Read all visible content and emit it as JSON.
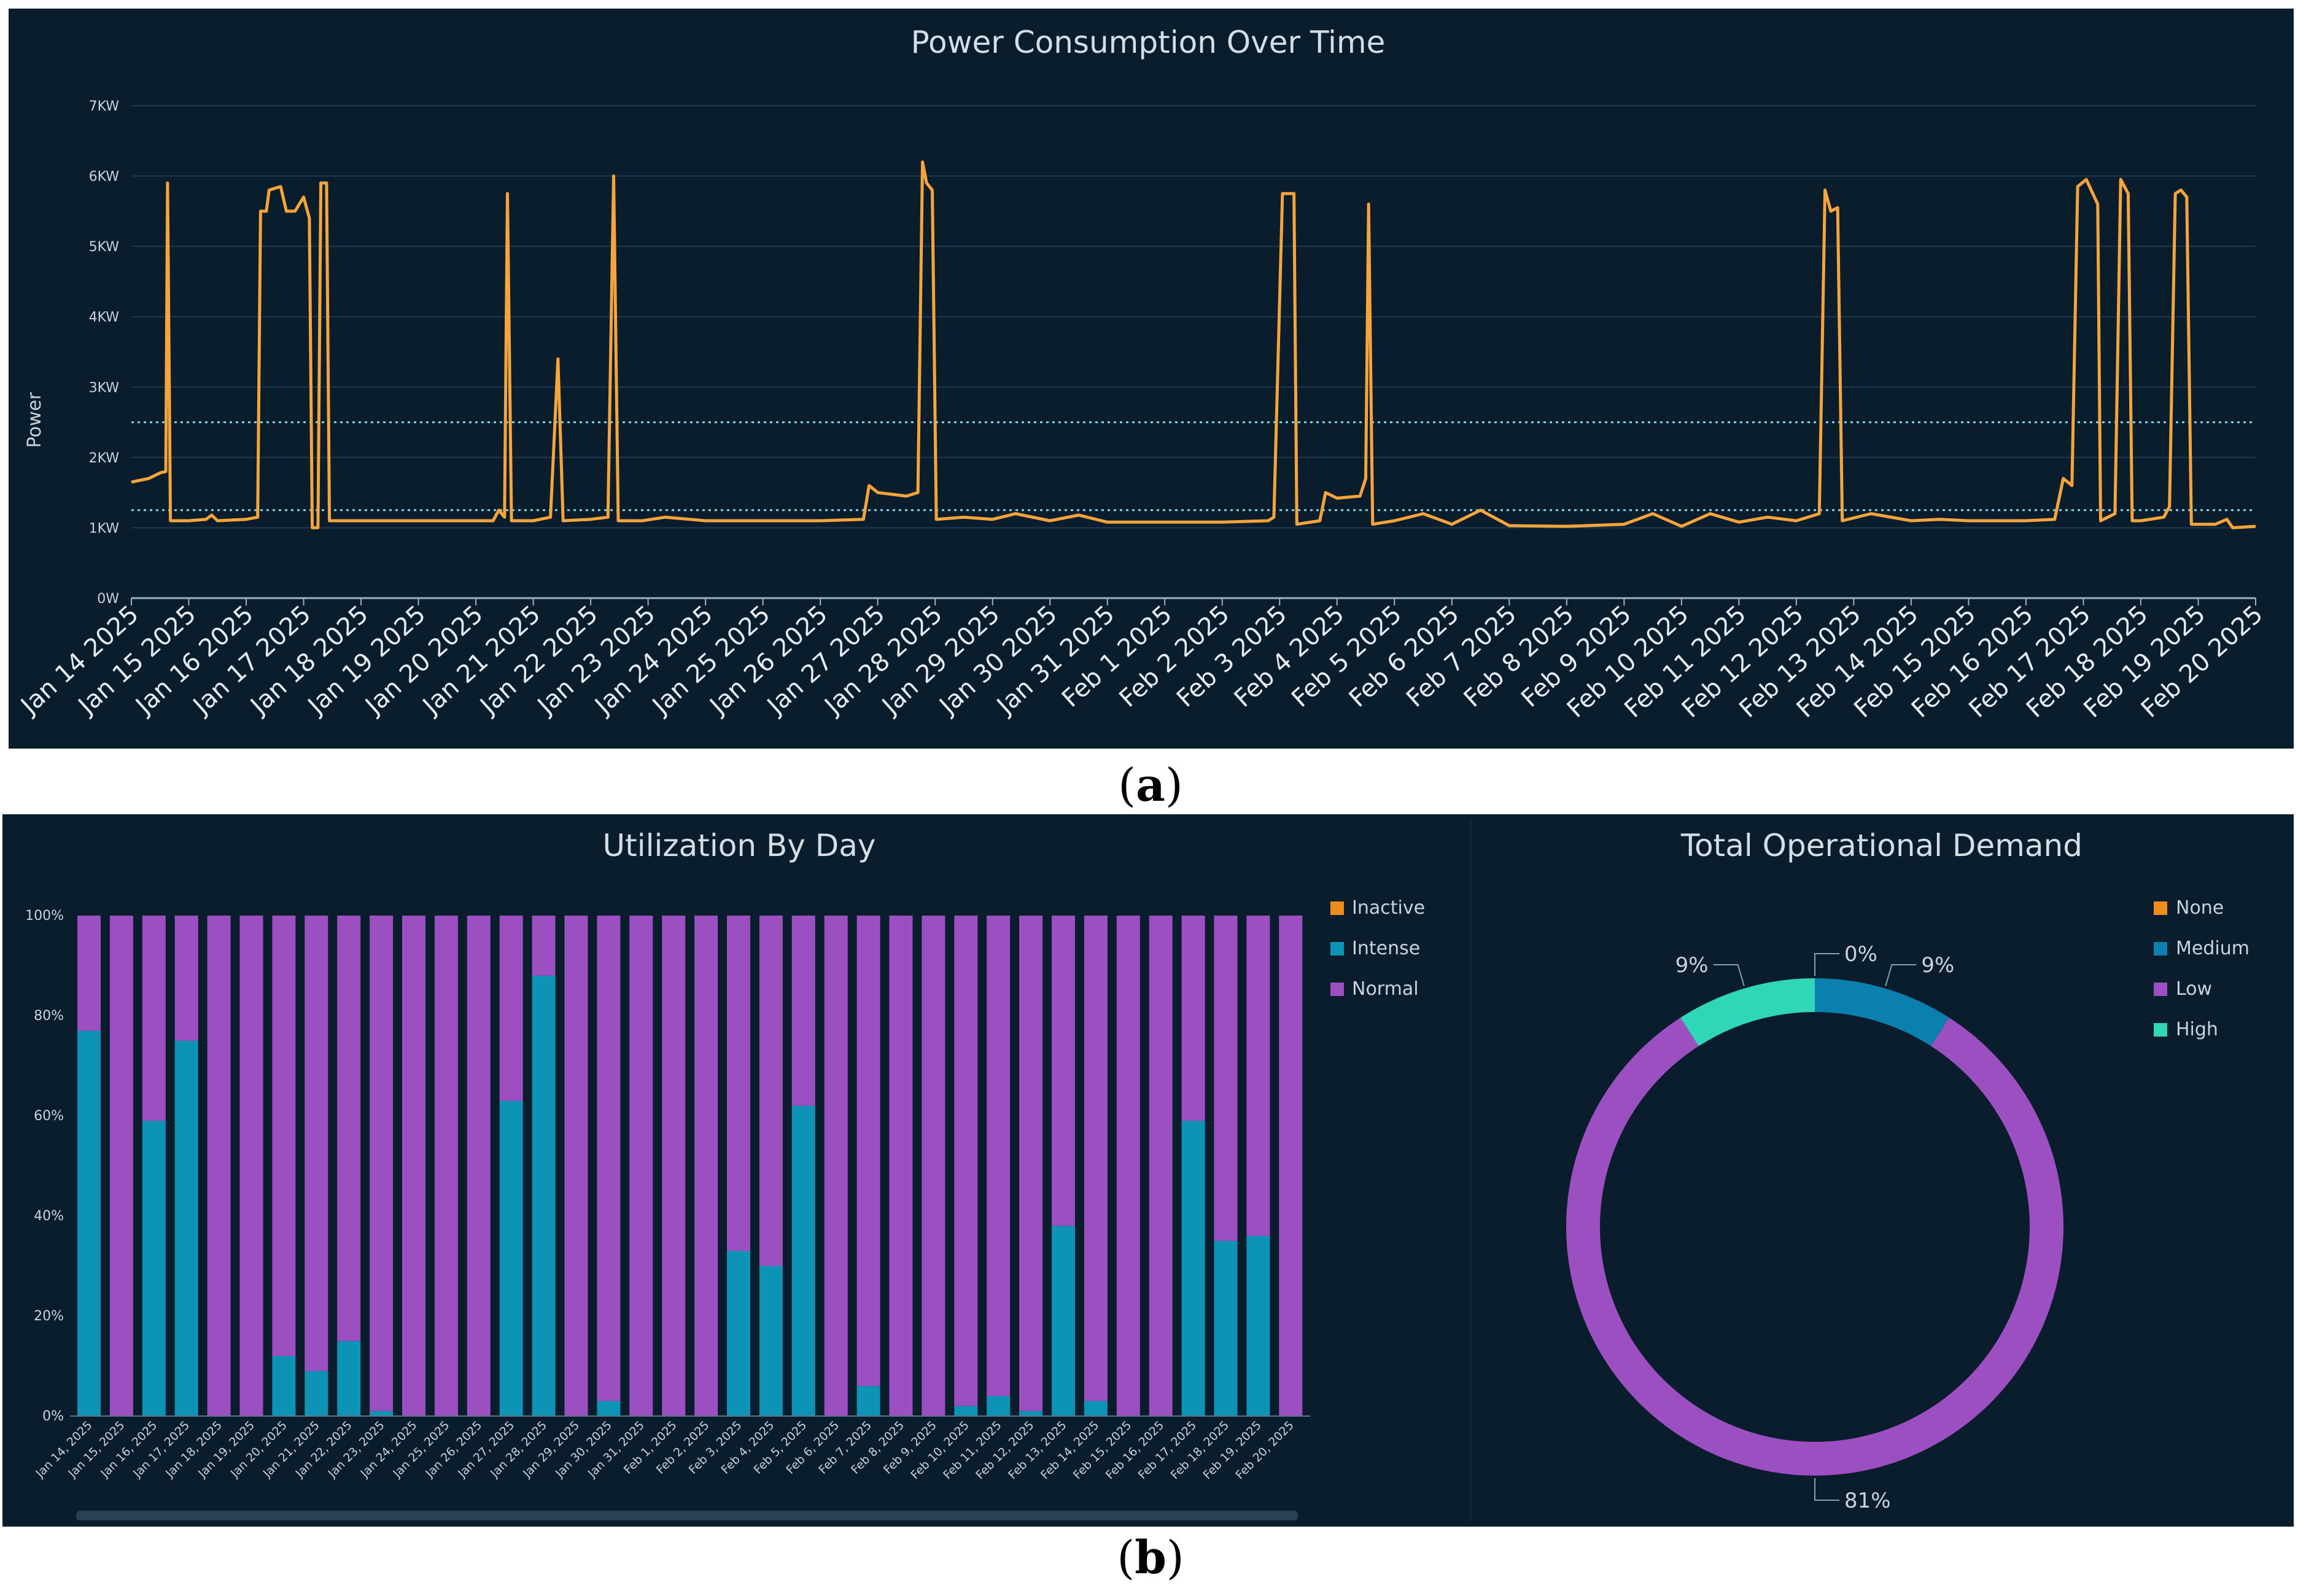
{
  "figure_labels": {
    "a": "a",
    "b": "b"
  },
  "colors": {
    "panel_bg": "#0a1d2d",
    "line": "#f7a43a",
    "intense": "#0d93b6",
    "normal": "#9b4fc0",
    "inactive": "#f08c1e",
    "none": "#f08c1e",
    "medium": "#0b7fae",
    "low": "#9b4fc0",
    "high": "#2fd6b7",
    "grid": "#1d3a52",
    "threshold": "#7ed9ee",
    "text": "#c9d3dc"
  },
  "chart_data": [
    {
      "type": "line",
      "title": "Power Consumption Over Time",
      "ylabel": "Power",
      "xlabel": "",
      "ylim": [
        0,
        7
      ],
      "y_ticks": [
        0,
        1,
        2,
        3,
        4,
        5,
        6,
        7
      ],
      "y_tick_labels": [
        "0W",
        "1KW",
        "2KW",
        "3KW",
        "4KW",
        "5KW",
        "6KW",
        "7KW"
      ],
      "x_tick_labels": [
        "Jan 14 2025",
        "Jan 15 2025",
        "Jan 16 2025",
        "Jan 17 2025",
        "Jan 18 2025",
        "Jan 19 2025",
        "Jan 20 2025",
        "Jan 21 2025",
        "Jan 22 2025",
        "Jan 23 2025",
        "Jan 24 2025",
        "Jan 25 2025",
        "Jan 26 2025",
        "Jan 27 2025",
        "Jan 28 2025",
        "Jan 29 2025",
        "Jan 30 2025",
        "Jan 31 2025",
        "Feb 1 2025",
        "Feb 2 2025",
        "Feb 3 2025",
        "Feb 4 2025",
        "Feb 5 2025",
        "Feb 6 2025",
        "Feb 7 2025",
        "Feb 8 2025",
        "Feb 9 2025",
        "Feb 10 2025",
        "Feb 11 2025",
        "Feb 12 2025",
        "Feb 13 2025",
        "Feb 14 2025",
        "Feb 15 2025",
        "Feb 16 2025",
        "Feb 17 2025",
        "Feb 18 2025",
        "Feb 19 2025",
        "Feb 20 2025"
      ],
      "grid": true,
      "thresholds": [
        2.5,
        1.25
      ],
      "series": [
        {
          "name": "",
          "points": [
            [
              0,
              1.65
            ],
            [
              0.3,
              1.7
            ],
            [
              0.5,
              1.78
            ],
            [
              0.6,
              1.8
            ],
            [
              0.63,
              5.9
            ],
            [
              0.68,
              1.1
            ],
            [
              1.0,
              1.1
            ],
            [
              1.3,
              1.12
            ],
            [
              1.4,
              1.18
            ],
            [
              1.5,
              1.1
            ],
            [
              2.0,
              1.12
            ],
            [
              2.2,
              1.15
            ],
            [
              2.25,
              5.5
            ],
            [
              2.35,
              5.5
            ],
            [
              2.4,
              5.8
            ],
            [
              2.6,
              5.85
            ],
            [
              2.7,
              5.5
            ],
            [
              2.85,
              5.5
            ],
            [
              3.0,
              5.7
            ],
            [
              3.1,
              5.4
            ],
            [
              3.15,
              1.0
            ],
            [
              3.25,
              1.0
            ],
            [
              3.3,
              5.9
            ],
            [
              3.4,
              5.9
            ],
            [
              3.45,
              1.1
            ],
            [
              4.0,
              1.1
            ],
            [
              5.0,
              1.1
            ],
            [
              6.0,
              1.1
            ],
            [
              6.3,
              1.1
            ],
            [
              6.4,
              1.25
            ],
            [
              6.5,
              1.15
            ],
            [
              6.55,
              5.75
            ],
            [
              6.62,
              1.1
            ],
            [
              7.0,
              1.1
            ],
            [
              7.3,
              1.15
            ],
            [
              7.43,
              3.4
            ],
            [
              7.52,
              1.1
            ],
            [
              8.0,
              1.12
            ],
            [
              8.3,
              1.15
            ],
            [
              8.4,
              6.0
            ],
            [
              8.48,
              1.1
            ],
            [
              8.9,
              1.1
            ],
            [
              9.3,
              1.15
            ],
            [
              10,
              1.1
            ],
            [
              11,
              1.1
            ],
            [
              12,
              1.1
            ],
            [
              12.75,
              1.12
            ],
            [
              12.85,
              1.6
            ],
            [
              13.0,
              1.5
            ],
            [
              13.5,
              1.45
            ],
            [
              13.7,
              1.5
            ],
            [
              13.78,
              6.2
            ],
            [
              13.85,
              5.9
            ],
            [
              13.95,
              5.8
            ],
            [
              14.02,
              1.12
            ],
            [
              14.5,
              1.15
            ],
            [
              15.0,
              1.12
            ],
            [
              15.4,
              1.2
            ],
            [
              16,
              1.1
            ],
            [
              16.5,
              1.18
            ],
            [
              17,
              1.08
            ],
            [
              18,
              1.08
            ],
            [
              19,
              1.08
            ],
            [
              19.8,
              1.1
            ],
            [
              19.9,
              1.15
            ],
            [
              20.05,
              5.75
            ],
            [
              20.25,
              5.75
            ],
            [
              20.3,
              1.05
            ],
            [
              20.7,
              1.1
            ],
            [
              20.8,
              1.5
            ],
            [
              21.0,
              1.42
            ],
            [
              21.4,
              1.45
            ],
            [
              21.5,
              1.7
            ],
            [
              21.55,
              5.6
            ],
            [
              21.62,
              1.05
            ],
            [
              22.0,
              1.1
            ],
            [
              22.5,
              1.2
            ],
            [
              23,
              1.05
            ],
            [
              23.5,
              1.25
            ],
            [
              24,
              1.03
            ],
            [
              25,
              1.02
            ],
            [
              26,
              1.05
            ],
            [
              26.5,
              1.2
            ],
            [
              27,
              1.02
            ],
            [
              27.5,
              1.2
            ],
            [
              28,
              1.08
            ],
            [
              28.5,
              1.15
            ],
            [
              29,
              1.1
            ],
            [
              29.4,
              1.2
            ],
            [
              29.5,
              5.8
            ],
            [
              29.6,
              5.5
            ],
            [
              29.72,
              5.55
            ],
            [
              29.8,
              1.1
            ],
            [
              30.3,
              1.2
            ],
            [
              31,
              1.1
            ],
            [
              31.5,
              1.12
            ],
            [
              32,
              1.1
            ],
            [
              33,
              1.1
            ],
            [
              33.5,
              1.12
            ],
            [
              33.65,
              1.7
            ],
            [
              33.8,
              1.6
            ],
            [
              33.9,
              5.85
            ],
            [
              34.05,
              5.95
            ],
            [
              34.25,
              5.6
            ],
            [
              34.3,
              1.1
            ],
            [
              34.55,
              1.2
            ],
            [
              34.65,
              5.95
            ],
            [
              34.78,
              5.75
            ],
            [
              34.85,
              1.1
            ],
            [
              35.0,
              1.1
            ],
            [
              35.4,
              1.15
            ],
            [
              35.5,
              1.3
            ],
            [
              35.6,
              5.75
            ],
            [
              35.7,
              5.8
            ],
            [
              35.8,
              5.7
            ],
            [
              35.88,
              1.05
            ],
            [
              36.3,
              1.05
            ],
            [
              36.5,
              1.12
            ],
            [
              36.6,
              1.0
            ],
            [
              37,
              1.02
            ]
          ]
        }
      ]
    },
    {
      "type": "bar",
      "stacked": true,
      "title": "Utilization By Day",
      "ylim": [
        0,
        100
      ],
      "y_tick_labels": [
        "0%",
        "20%",
        "40%",
        "60%",
        "80%",
        "100%"
      ],
      "categories": [
        "Jan 14, 2025",
        "Jan 15, 2025",
        "Jan 16, 2025",
        "Jan 17, 2025",
        "Jan 18, 2025",
        "Jan 19, 2025",
        "Jan 20, 2025",
        "Jan 21, 2025",
        "Jan 22, 2025",
        "Jan 23, 2025",
        "Jan 24, 2025",
        "Jan 25, 2025",
        "Jan 26, 2025",
        "Jan 27, 2025",
        "Jan 28, 2025",
        "Jan 29, 2025",
        "Jan 30, 2025",
        "Jan 31, 2025",
        "Feb 1, 2025",
        "Feb 2, 2025",
        "Feb 3, 2025",
        "Feb 4, 2025",
        "Feb 5, 2025",
        "Feb 6, 2025",
        "Feb 7, 2025",
        "Feb 8, 2025",
        "Feb 9, 2025",
        "Feb 10, 2025",
        "Feb 11, 2025",
        "Feb 12, 2025",
        "Feb 13, 2025",
        "Feb 14, 2025",
        "Feb 15, 2025",
        "Feb 16, 2025",
        "Feb 17, 2025",
        "Feb 18, 2025",
        "Feb 19, 2025",
        "Feb 20, 2025"
      ],
      "legend": {
        "position": "right",
        "entries": [
          "Inactive",
          "Intense",
          "Normal"
        ]
      },
      "series": [
        {
          "name": "Inactive",
          "values": [
            0,
            0,
            0,
            0,
            0,
            0,
            0,
            0,
            0,
            0,
            0,
            0,
            0,
            0,
            0,
            0,
            0,
            0,
            0,
            0,
            0,
            0,
            0,
            0,
            0,
            0,
            0,
            0,
            0,
            0,
            0,
            0,
            0,
            0,
            0,
            0,
            0,
            0
          ]
        },
        {
          "name": "Intense",
          "values": [
            77,
            0,
            59,
            75,
            0,
            0,
            12,
            9,
            15,
            1,
            0,
            0,
            0,
            63,
            88,
            0,
            3,
            0,
            0,
            0,
            33,
            30,
            62,
            0,
            6,
            0,
            0,
            2,
            4,
            1,
            38,
            3,
            0,
            0,
            59,
            35,
            36,
            0
          ]
        },
        {
          "name": "Normal",
          "values": [
            23,
            100,
            41,
            25,
            100,
            100,
            88,
            91,
            85,
            99,
            100,
            100,
            100,
            37,
            12,
            100,
            97,
            100,
            100,
            100,
            67,
            70,
            38,
            100,
            94,
            100,
            100,
            98,
            96,
            99,
            62,
            97,
            100,
            100,
            41,
            65,
            64,
            100
          ]
        }
      ]
    },
    {
      "type": "pie",
      "donut": true,
      "title": "Total Operational Demand",
      "legend": {
        "position": "right",
        "entries": [
          "None",
          "Medium",
          "Low",
          "High"
        ]
      },
      "slices": [
        {
          "name": "None",
          "value": 0,
          "label": "0%"
        },
        {
          "name": "Medium",
          "value": 9,
          "label": "9%"
        },
        {
          "name": "Low",
          "value": 81,
          "label": "81%"
        },
        {
          "name": "High",
          "value": 9,
          "label": "9%"
        }
      ]
    }
  ]
}
